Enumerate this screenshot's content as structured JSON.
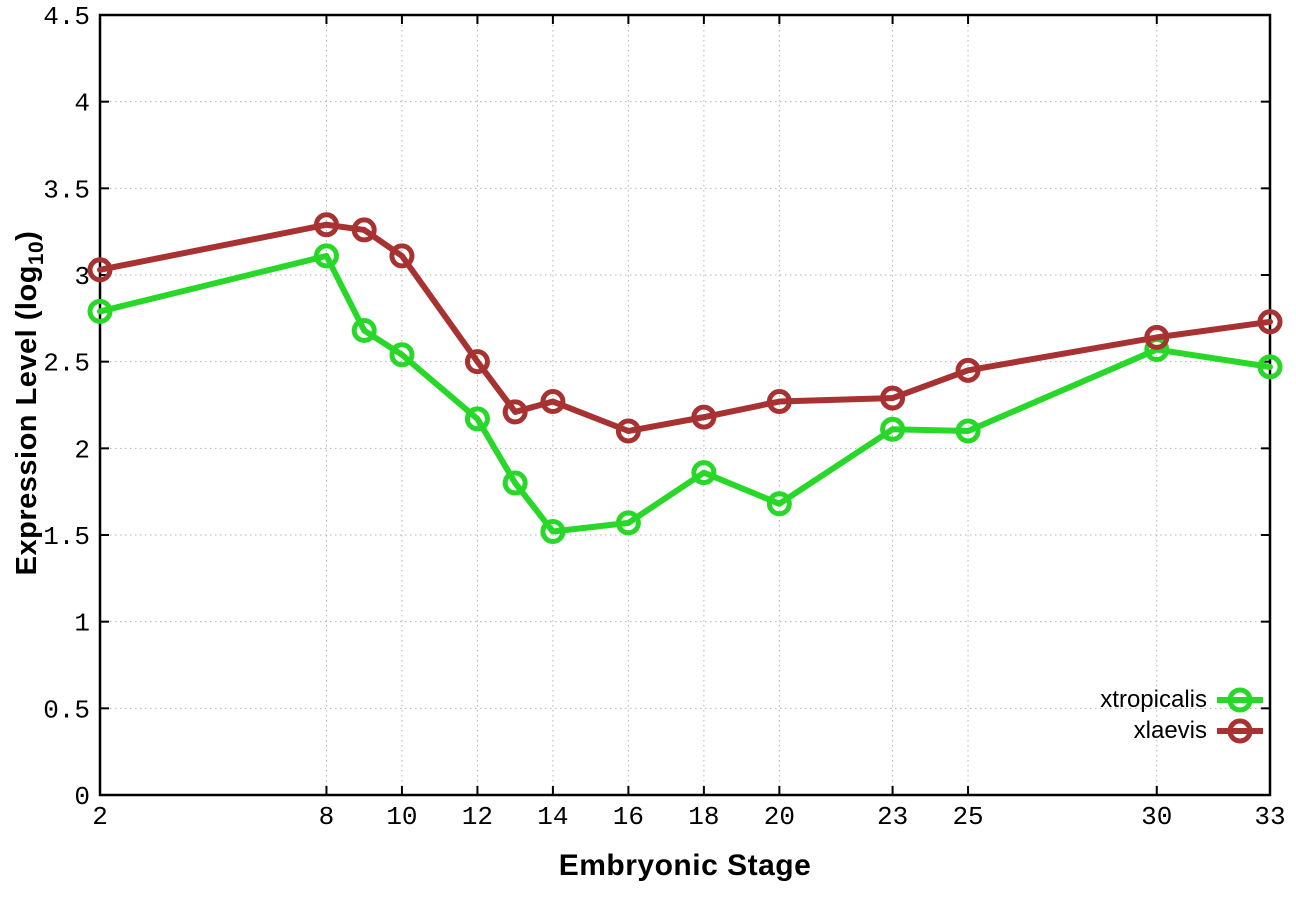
{
  "chart_data": {
    "type": "line",
    "title": "",
    "xlabel": "Embryonic Stage",
    "ylabel": "Expression Level (log10)",
    "ylabel_parts": {
      "pre": "Expression Level (log",
      "sub": "10",
      "post": ")"
    },
    "x": [
      2,
      8,
      9,
      10,
      12,
      13,
      14,
      16,
      18,
      20,
      23,
      25,
      30,
      33
    ],
    "series": [
      {
        "name": "xtropicalis",
        "color": "#28d828",
        "values": [
          2.79,
          3.11,
          2.68,
          2.54,
          2.17,
          1.8,
          1.52,
          1.57,
          1.86,
          1.68,
          2.11,
          2.1,
          2.57,
          2.47
        ]
      },
      {
        "name": "xlaevis",
        "color": "#a83232",
        "values": [
          3.03,
          3.29,
          3.26,
          3.11,
          2.5,
          2.21,
          2.27,
          2.1,
          2.18,
          2.27,
          2.29,
          2.45,
          2.64,
          2.73
        ]
      }
    ],
    "xlim": [
      2,
      33
    ],
    "ylim": [
      0,
      4.5
    ],
    "x_ticks": [
      2,
      8,
      10,
      12,
      14,
      16,
      18,
      20,
      23,
      25,
      30,
      33
    ],
    "x_tick_labels": [
      "2",
      "8",
      "10",
      "12",
      "14",
      "16",
      "18",
      "20",
      "23",
      "25",
      "30",
      "33"
    ],
    "y_ticks": [
      0,
      0.5,
      1,
      1.5,
      2,
      2.5,
      3,
      3.5,
      4,
      4.5
    ],
    "y_tick_labels": [
      "0",
      "0.5",
      "1",
      "1.5",
      "2",
      "2.5",
      "3",
      "3.5",
      "4",
      "4.5"
    ],
    "grid": true,
    "legend_position": "inside-bottom-right",
    "marker": "open-circle"
  },
  "colors": {
    "background": "#ffffff",
    "axis": "#000000",
    "grid": "#b3b3b3",
    "tick_text": "#000000"
  }
}
